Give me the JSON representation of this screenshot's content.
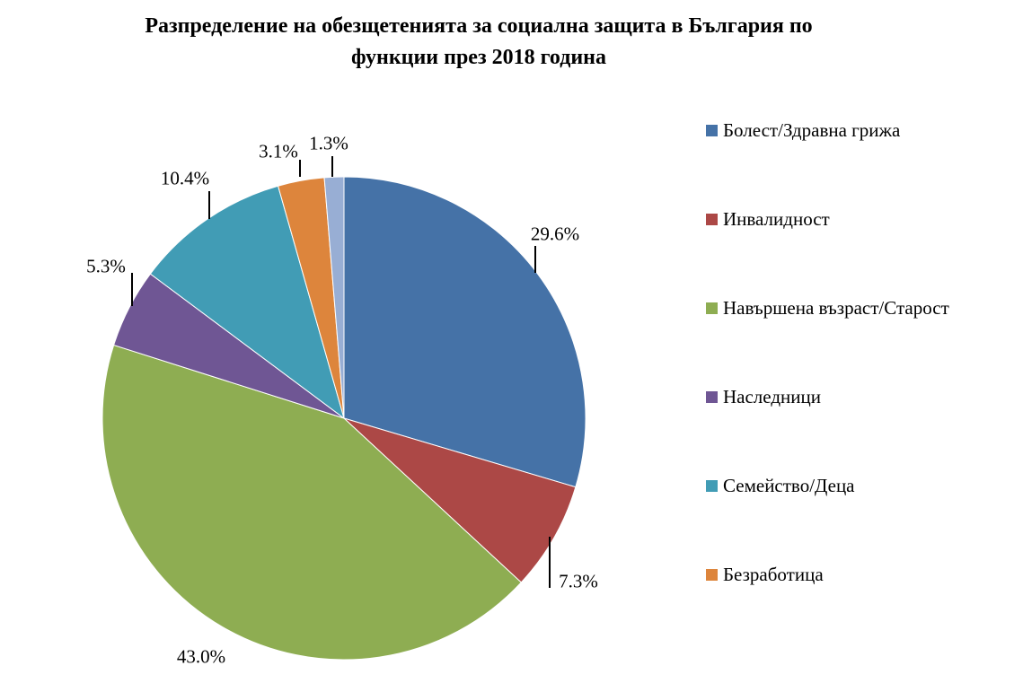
{
  "title": {
    "line1": "Разпределение на обезщетенията за социална защита в България по",
    "line2": "функции през 2018 година"
  },
  "chart_data": {
    "type": "pie",
    "title": "Разпределение на обезщетенията за социална защита в България по функции през 2018 година",
    "start_angle_deg": 0,
    "direction": "clockwise",
    "legend_position": "right",
    "data_labels": "percent, outside end with leader lines",
    "slices": [
      {
        "label": "Болест/Здравна грижа",
        "value": 29.6,
        "display": "29.6%",
        "color": "#4572A7"
      },
      {
        "label": "Инвалидност",
        "value": 7.3,
        "display": "7.3%",
        "color": "#AC4846"
      },
      {
        "label": "Навършена възраст/Старост",
        "value": 43.0,
        "display": "43.0%",
        "color": "#8EAD52"
      },
      {
        "label": "Наследници",
        "value": 5.3,
        "display": "5.3%",
        "color": "#6F5694"
      },
      {
        "label": "Семейство/Деца",
        "value": 10.4,
        "display": "10.4%",
        "color": "#419CB5"
      },
      {
        "label": "Безработица",
        "value": 3.1,
        "display": "3.1%",
        "color": "#DD853C"
      },
      {
        "label": null,
        "value": 1.3,
        "display": "1.3%",
        "color": "#98AED4"
      }
    ]
  }
}
